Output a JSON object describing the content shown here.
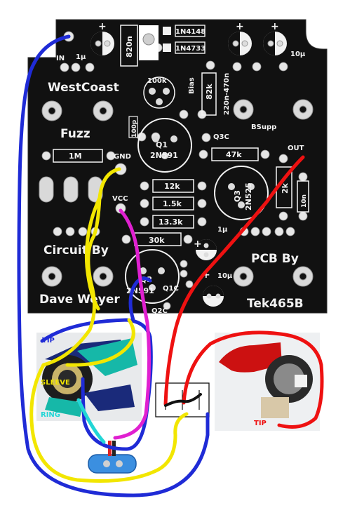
{
  "board": {
    "silkscreen": {
      "westcoast": "WestCoast",
      "fuzz": "Fuzz",
      "circuit_by": "Circuit By",
      "dave_weyer": "Dave Weyer",
      "pcb_by": "PCB By",
      "tek465b": "Tek465B"
    },
    "pads": {
      "in": "IN",
      "gnd": "GND",
      "vcc": "VCC",
      "out": "OUT",
      "bsupp": "BSupp",
      "bias": "Bias",
      "q3c": "Q3C",
      "q1c": "Q1C",
      "q2c": "Q2C"
    },
    "caps": {
      "c_1u_in": "1µ",
      "c_820n": "820n",
      "c_10u_top": "10µ",
      "c_100p": "100p",
      "c_220n_470n": "220n-470n",
      "c_1u_mid": "1µ",
      "c_10u_low": "10µ",
      "c_10n": "10n"
    },
    "resistors": {
      "r_1m": "1M",
      "r_82k": "82k",
      "r_47k": "47k",
      "r_12k": "12k",
      "r_1k5": "1.5k",
      "r_13k3": "13.3k",
      "r_30k": "30k",
      "r_2k": "2k",
      "trim_100k": "100k"
    },
    "diodes": {
      "d1": "1N4148",
      "d2": "1N4733"
    },
    "transistors": {
      "q1_name": "Q1",
      "q1_part": "2N591",
      "q2_name": "Q2",
      "q2_part": "2N591",
      "q3_name": "Q3",
      "q3_part": "2N525"
    }
  },
  "jacks": {
    "input_tip": "TIP",
    "input_sleeve": "SLEEVE",
    "input_ring": "RING",
    "output_tip": "TIP"
  },
  "colors": {
    "pcb": "#111111",
    "silk": "#f2f2f2",
    "pad": "#e6e6e6",
    "wire_blue": "#1f2bd6",
    "wire_yellow": "#f2e600",
    "wire_red": "#ee1111",
    "wire_magenta": "#e020d0",
    "wire_cyan": "#22d6d6",
    "wire_black": "#111111",
    "battery": "#3b8fe0"
  }
}
